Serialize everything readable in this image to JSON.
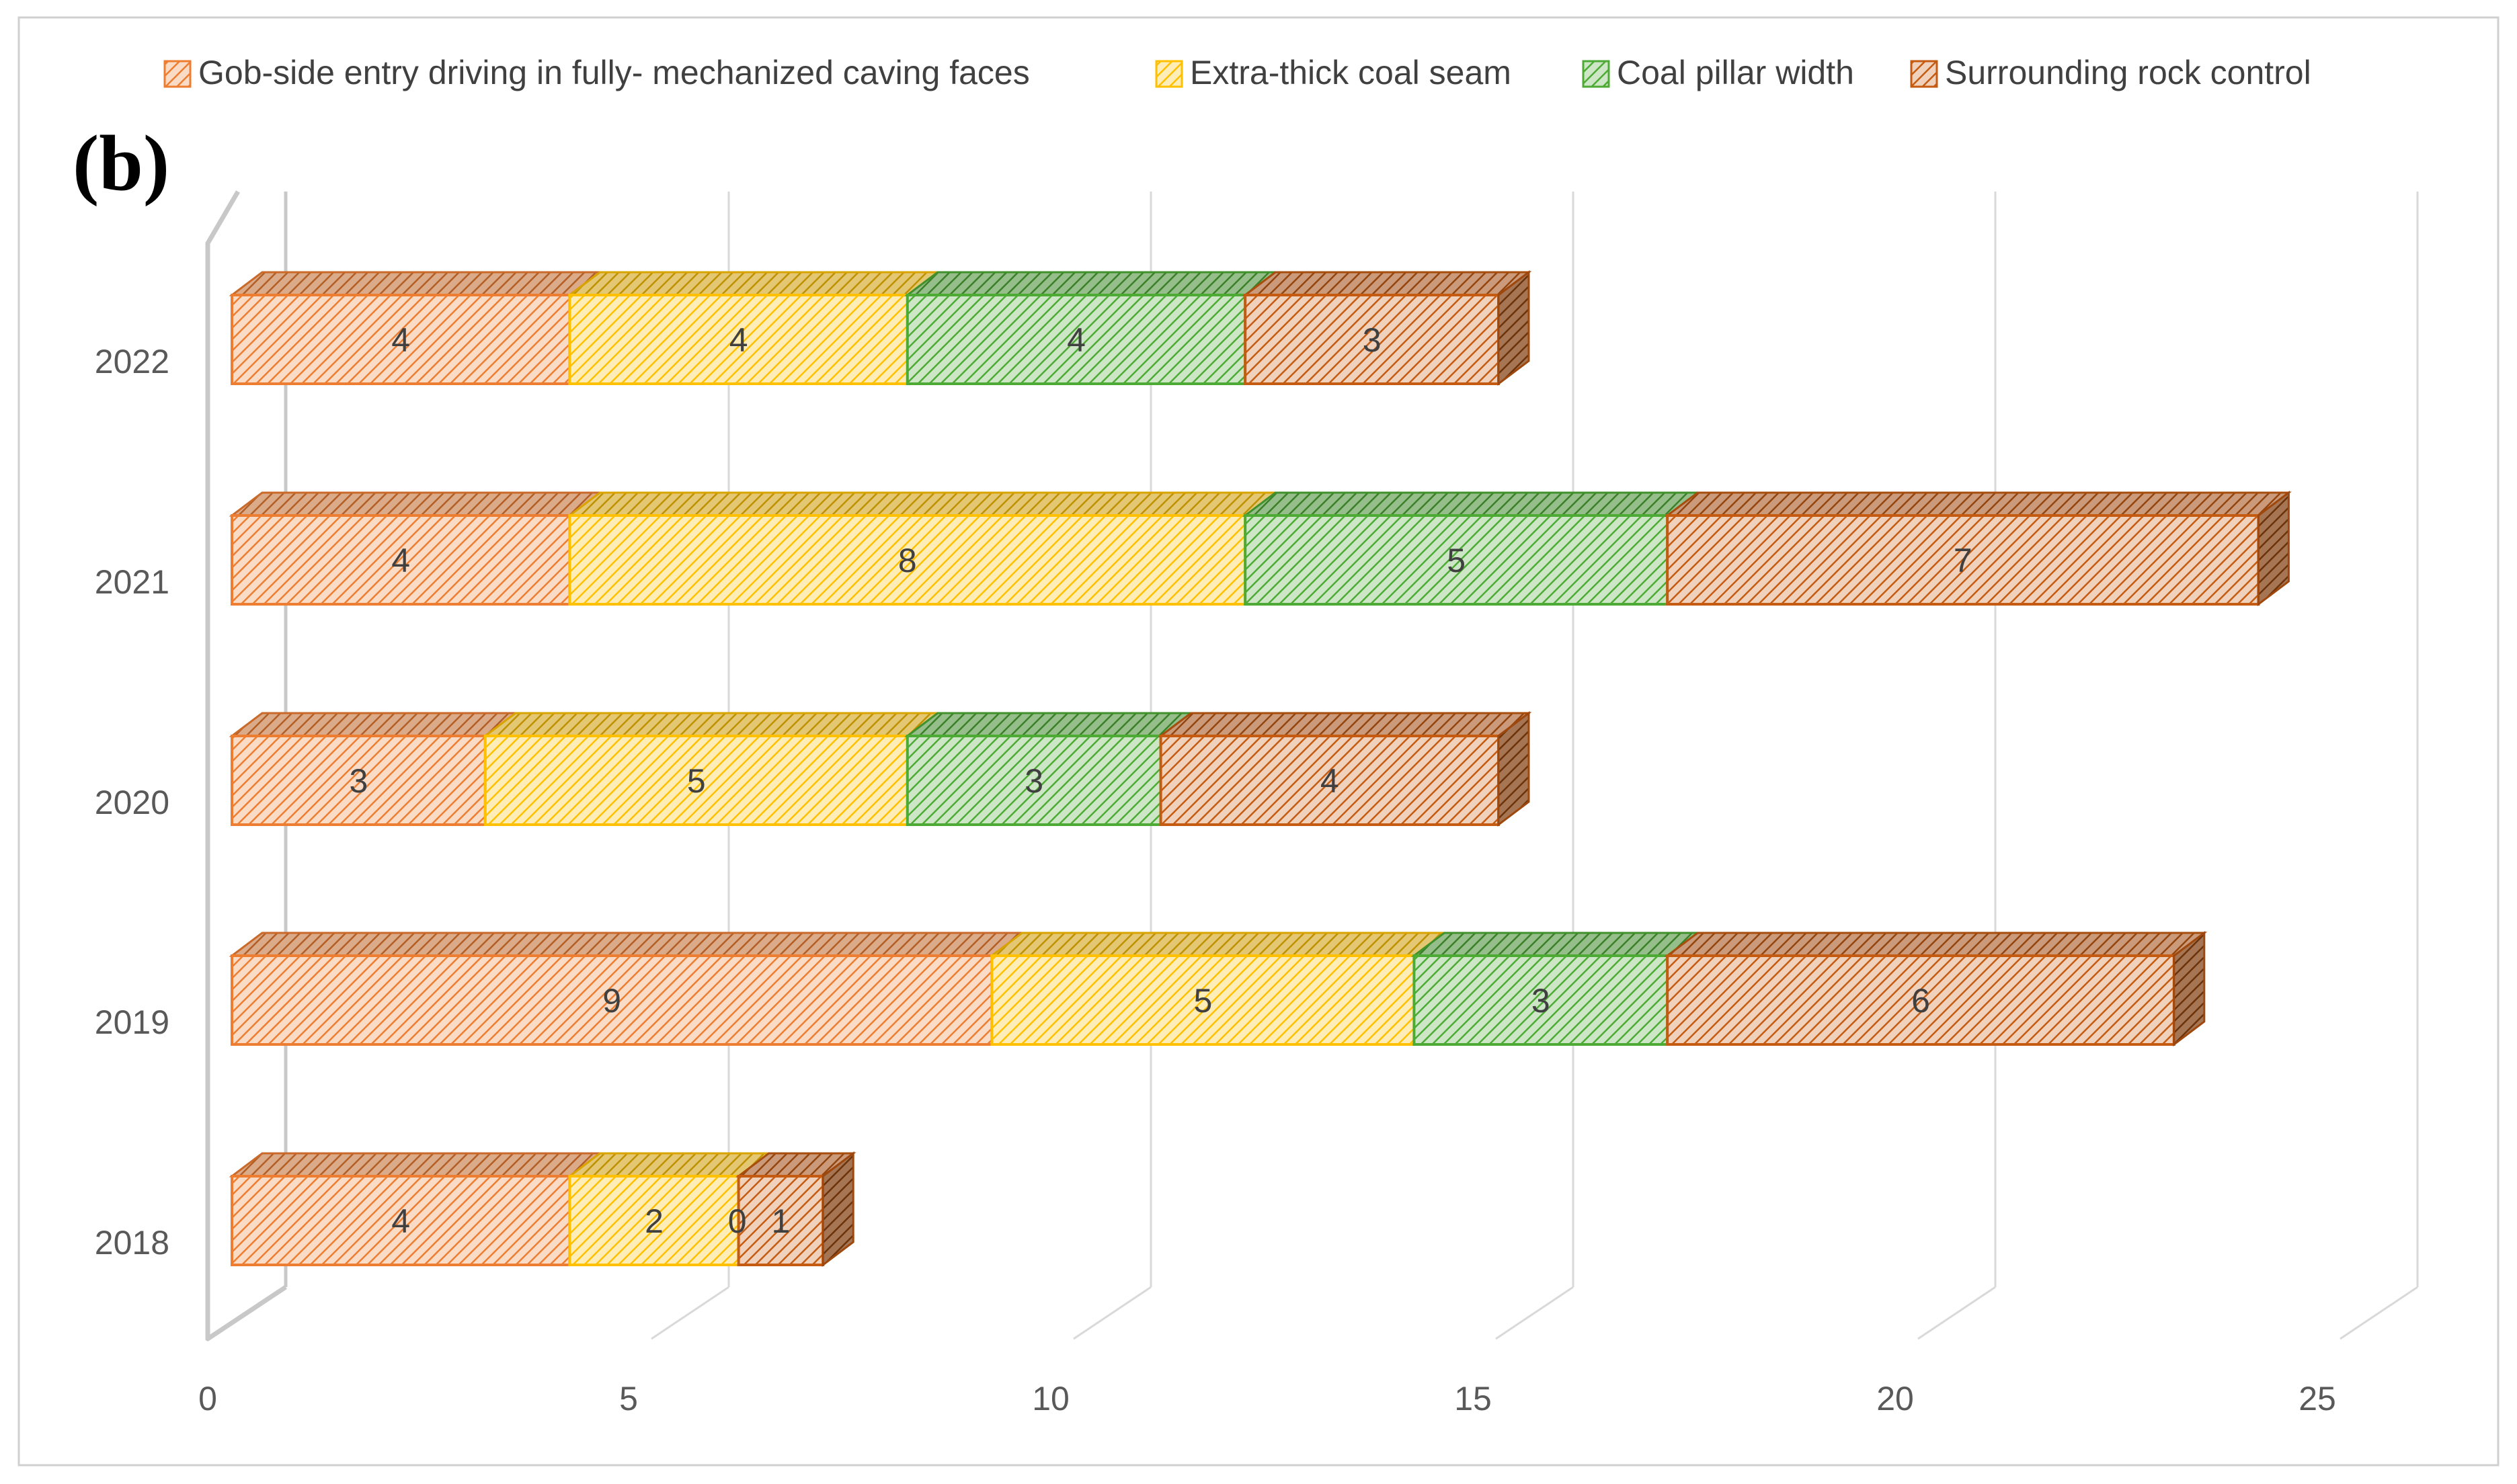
{
  "panel_label": "(b)",
  "chart_data": {
    "type": "bar",
    "orientation": "horizontal",
    "stacked": true,
    "three_d": true,
    "categories": [
      "2018",
      "2019",
      "2020",
      "2021",
      "2022"
    ],
    "series": [
      {
        "name": "Gob-side entry driving in fully- mechanized caving faces",
        "color": "#ED7D31",
        "values": [
          4,
          9,
          3,
          4,
          4
        ]
      },
      {
        "name": "Extra-thick coal seam",
        "color": "#FFC000",
        "values": [
          2,
          5,
          5,
          8,
          4
        ]
      },
      {
        "name": "Coal pillar width",
        "color": "#4DAA34",
        "values": [
          0,
          3,
          3,
          5,
          4
        ]
      },
      {
        "name": "Surrounding rock control",
        "color": "#C55A11",
        "values": [
          1,
          6,
          4,
          7,
          3
        ]
      }
    ],
    "xlim": [
      0,
      25
    ],
    "xticks": [
      0,
      5,
      10,
      15,
      20,
      25
    ],
    "xtick_labels": [
      "0",
      "5",
      "10",
      "15",
      "20",
      "25"
    ],
    "grid": true,
    "legend_position": "top",
    "data_labels": true,
    "title": "",
    "xlabel": "",
    "ylabel": ""
  }
}
